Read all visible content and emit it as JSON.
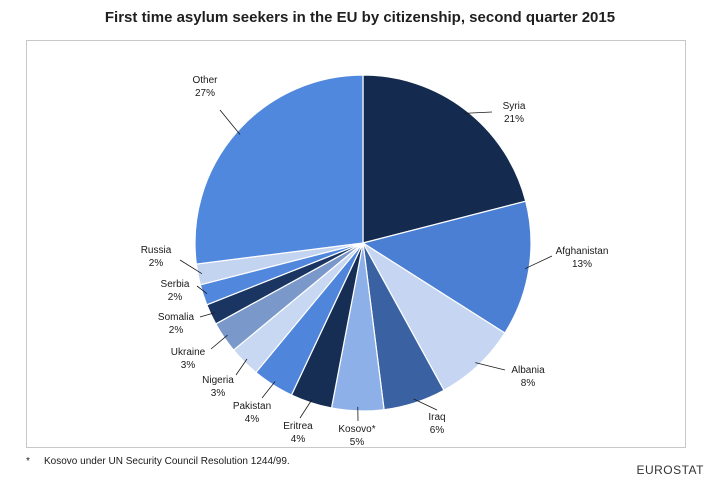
{
  "chart_data": {
    "type": "pie",
    "title": "First time asylum seekers in the EU by citizenship, second quarter 2015",
    "start_angle_deg": 0,
    "direction": "clockwise",
    "slices": [
      {
        "label": "Syria",
        "value": 21,
        "value_label": "21%",
        "color": "#142b4f"
      },
      {
        "label": "Afghanistan",
        "value": 13,
        "value_label": "13%",
        "color": "#4a7fd4"
      },
      {
        "label": "Albania",
        "value": 8,
        "value_label": "8%",
        "color": "#c6d6f2"
      },
      {
        "label": "Iraq",
        "value": 6,
        "value_label": "6%",
        "color": "#3a62a3"
      },
      {
        "label": "Kosovo*",
        "value": 5,
        "value_label": "5%",
        "color": "#8eb0e8"
      },
      {
        "label": "Eritrea",
        "value": 4,
        "value_label": "4%",
        "color": "#172e54"
      },
      {
        "label": "Pakistan",
        "value": 4,
        "value_label": "4%",
        "color": "#4f86dc"
      },
      {
        "label": "Nigeria",
        "value": 3,
        "value_label": "3%",
        "color": "#c8d8f2"
      },
      {
        "label": "Ukraine",
        "value": 3,
        "value_label": "3%",
        "color": "#7a98c9"
      },
      {
        "label": "Somalia",
        "value": 2,
        "value_label": "2%",
        "color": "#1b3563"
      },
      {
        "label": "Serbia",
        "value": 2,
        "value_label": "2%",
        "color": "#5188dd"
      },
      {
        "label": "Russia",
        "value": 2,
        "value_label": "2%",
        "color": "#c3d4f0"
      },
      {
        "label": "Other",
        "value": 27,
        "value_label": "27%",
        "color": "#4f88dc"
      }
    ]
  },
  "footnote": {
    "marker": "*",
    "text": "Kosovo under UN Security Council Resolution 1244/99."
  },
  "source": "EUROSTAT"
}
